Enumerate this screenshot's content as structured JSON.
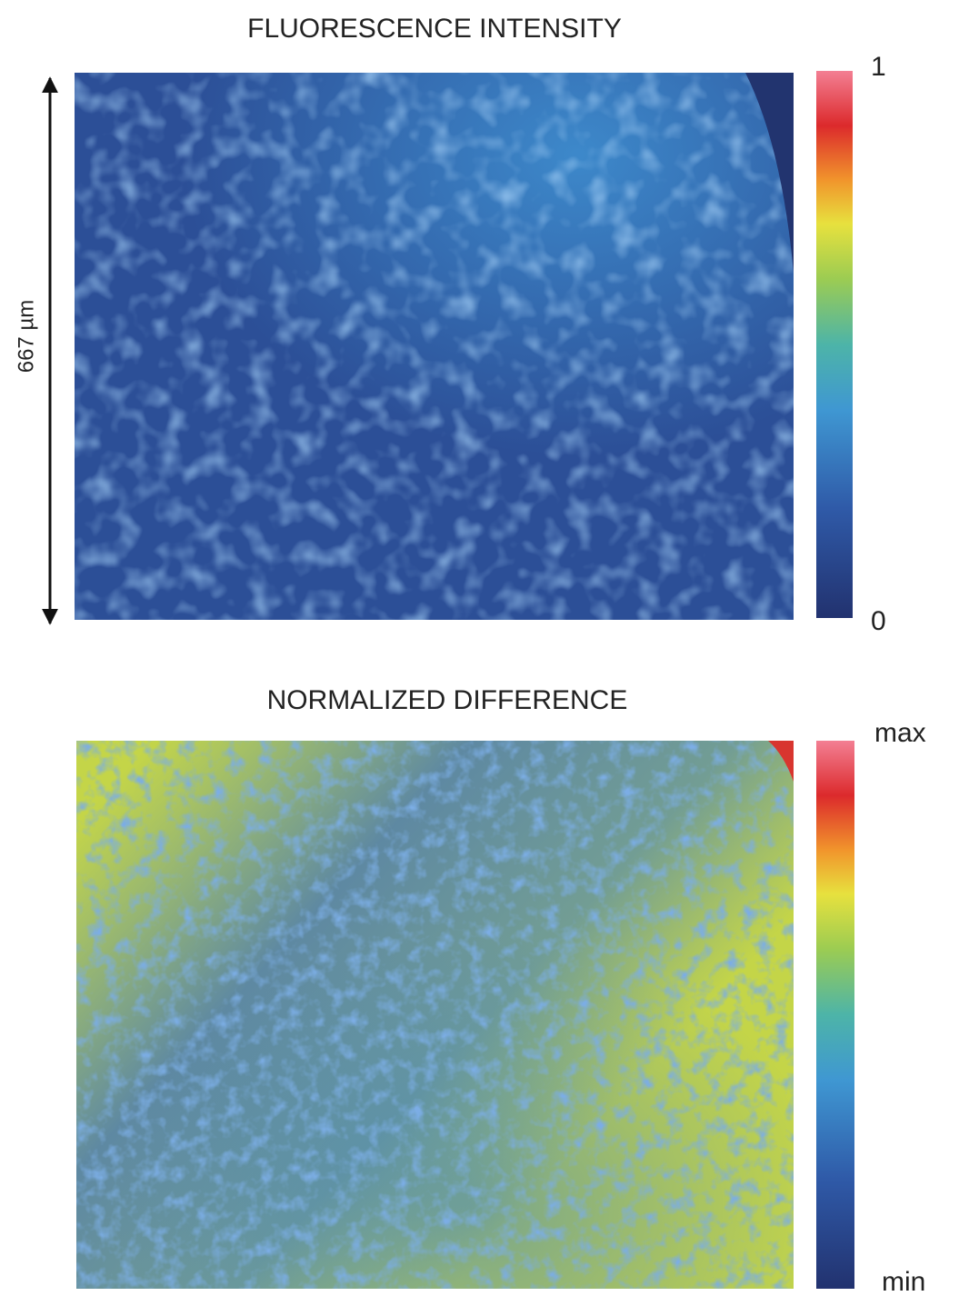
{
  "panels": [
    {
      "title": "FLUORESCENCE INTENSITY",
      "colorbar": {
        "top_label": "1",
        "bottom_label": "0"
      },
      "scale_label": "667 µm"
    },
    {
      "title": "NORMALIZED DIFFERENCE",
      "colorbar": {
        "top_label": "max",
        "bottom_label": "min"
      }
    }
  ]
}
